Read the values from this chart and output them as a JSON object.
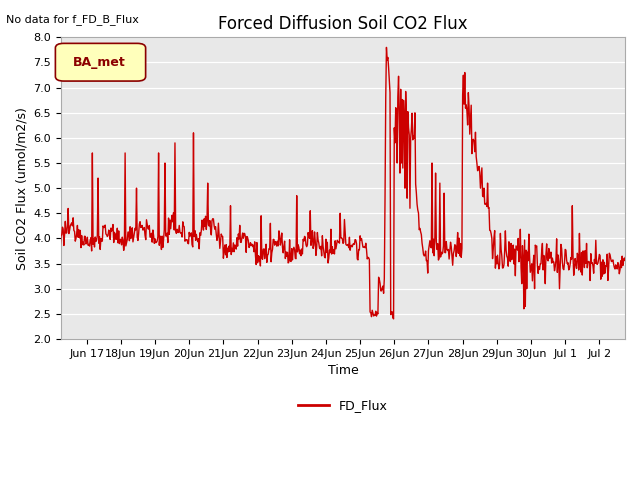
{
  "title": "Forced Diffusion Soil CO2 Flux",
  "ylabel_display": "Soil CO2 Flux (umol/m2/s)",
  "xlabel": "Time",
  "no_data_text": "No data for f_FD_B_Flux",
  "legend_site": "BA_met",
  "legend_line": "FD_Flux",
  "ylim": [
    2.0,
    8.0
  ],
  "yticks": [
    2.0,
    2.5,
    3.0,
    3.5,
    4.0,
    4.5,
    5.0,
    5.5,
    6.0,
    6.5,
    7.0,
    7.5,
    8.0
  ],
  "line_color": "#cc0000",
  "line_width": 1.0,
  "bg_color": "#e8e8e8",
  "fig_bg_color": "#ffffff",
  "title_fontsize": 12,
  "label_fontsize": 9,
  "tick_fontsize": 8,
  "nodata_fontsize": 8,
  "legend_site_fontsize": 9
}
